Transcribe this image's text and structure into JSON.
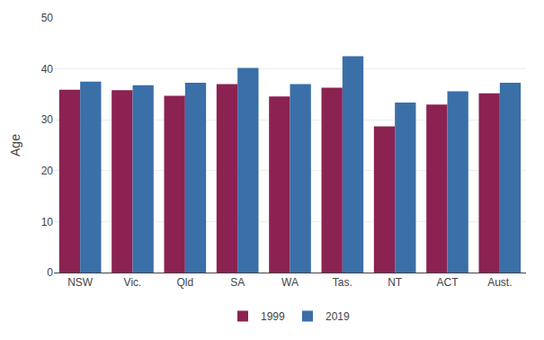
{
  "chart_data": {
    "type": "bar",
    "categories": [
      "NSW",
      "Vic.",
      "Qld",
      "SA",
      "WA",
      "Tas.",
      "NT",
      "ACT",
      "Aust."
    ],
    "series": [
      {
        "name": "1999",
        "color": "#8B2252",
        "values": [
          35.9,
          35.8,
          34.7,
          37.0,
          34.6,
          36.3,
          28.7,
          33.0,
          35.2
        ]
      },
      {
        "name": "2019",
        "color": "#3A6FA8",
        "values": [
          37.5,
          36.8,
          37.3,
          40.2,
          37.0,
          42.5,
          33.4,
          35.6,
          37.3
        ]
      }
    ],
    "ylabel": "Age",
    "ylim": [
      0,
      50
    ],
    "yticks": [
      0,
      10,
      20,
      30,
      40,
      50
    ],
    "grid": true,
    "legend": "bottom"
  }
}
